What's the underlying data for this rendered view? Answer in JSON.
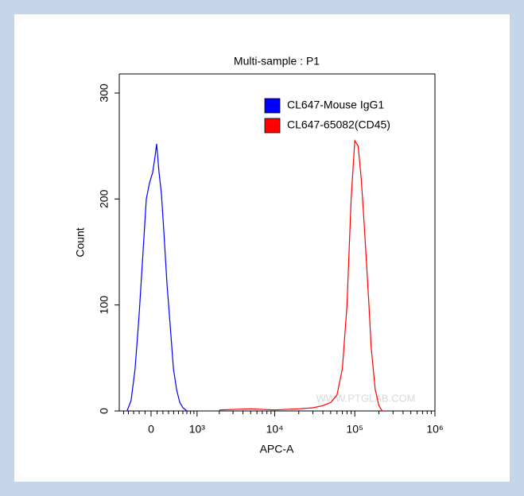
{
  "chart_data": {
    "type": "histogram-overlay",
    "title": "Multi-sample : P1",
    "x_label": "APC-A",
    "y_label": "Count",
    "watermark": "WWW.PTGLAB.COM",
    "xscale": "biexponential",
    "xlim": [
      -600,
      1000000
    ],
    "ylim": [
      0,
      318
    ],
    "xticks": [
      0,
      {
        "value": 1000,
        "label": "10³"
      },
      {
        "value": 10000,
        "label": "10⁴"
      },
      {
        "value": 100000,
        "label": "10⁵"
      },
      {
        "value": 1000000,
        "label": "10⁶"
      }
    ],
    "xminorticks": [
      -500,
      -400,
      -300,
      -200,
      -100,
      100,
      200,
      300,
      400,
      500,
      600,
      700,
      800,
      900,
      2000,
      3000,
      4000,
      5000,
      6000,
      7000,
      8000,
      9000,
      20000,
      30000,
      40000,
      50000,
      60000,
      70000,
      80000,
      90000,
      200000,
      300000,
      400000,
      500000,
      600000,
      700000,
      800000,
      900000
    ],
    "yticks": [
      0,
      100,
      200,
      300
    ],
    "legend": "upper right",
    "series": [
      {
        "name": "CL647-Mouse IgG1",
        "color": "#0000ff",
        "x": [
          -427,
          -347,
          -272,
          -201,
          -133,
          -79,
          -26,
          26,
          66,
          92,
          133,
          173,
          215,
          272,
          332,
          394,
          460,
          529,
          603,
          700
        ],
        "values": [
          0,
          10,
          40,
          90,
          150,
          200,
          215,
          225,
          240,
          252,
          225,
          205,
          170,
          120,
          80,
          40,
          20,
          8,
          3,
          0
        ]
      },
      {
        "name": "CL647-65082(CD45)",
        "color": "#ff0000",
        "x": [
          2000,
          5000,
          10000,
          20000,
          30000,
          40000,
          50000,
          60000,
          70000,
          80000,
          90000,
          100000,
          110000,
          120000,
          130000,
          140000,
          150000,
          160000,
          180000,
          200000,
          220000
        ],
        "values": [
          1,
          2,
          1,
          2,
          3,
          5,
          8,
          15,
          40,
          100,
          200,
          255,
          250,
          220,
          180,
          140,
          100,
          60,
          20,
          5,
          0
        ]
      }
    ]
  }
}
